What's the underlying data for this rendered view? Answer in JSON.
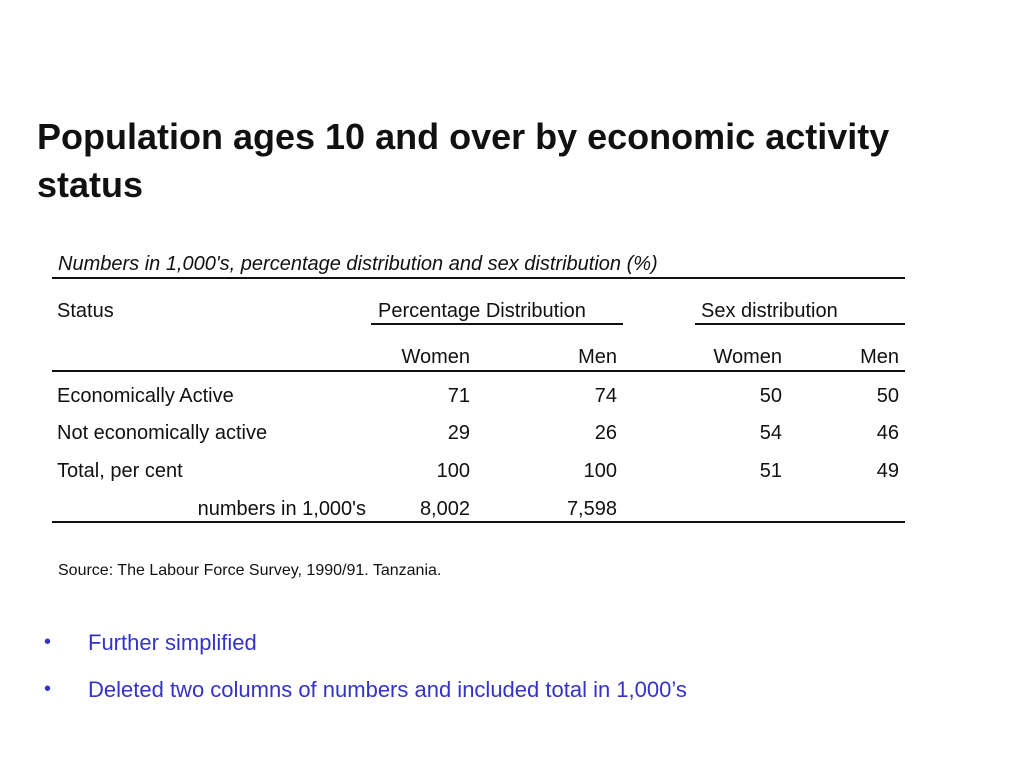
{
  "slide": {
    "title": "Population ages 10 and over by economic activity status"
  },
  "table": {
    "caption": "Numbers in 1,000's, percentage distribution and sex distribution (%)",
    "header": {
      "status": "Status",
      "percentage_distribution": "Percentage Distribution",
      "sex_distribution": "Sex distribution",
      "women_pct": "Women",
      "men_pct": "Men",
      "women_sex": "Women",
      "men_sex": "Men"
    },
    "rows": [
      {
        "status": "Economically Active",
        "pct_women": "71",
        "pct_men": "74",
        "sex_women": "50",
        "sex_men": "50"
      },
      {
        "status": "Not economically active",
        "pct_women": "29",
        "pct_men": "26",
        "sex_women": "54",
        "sex_men": "46"
      },
      {
        "status": "Total, per cent",
        "pct_women": "100",
        "pct_men": "100",
        "sex_women": "51",
        "sex_men": "49"
      }
    ],
    "numbers_row": {
      "label": "numbers in 1,000's",
      "women": "8,002",
      "men": "7,598"
    },
    "source": "Source: The Labour Force Survey, 1990/91. Tanzania."
  },
  "bullets": [
    "Further simplified",
    "Deleted two columns of numbers and included total in 1,000’s"
  ],
  "colors": {
    "bullet_text": "#3333cc",
    "text": "#111111"
  }
}
